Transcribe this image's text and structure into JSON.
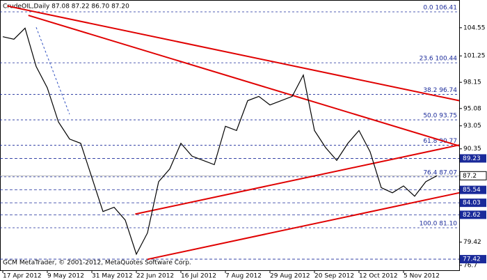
{
  "chart_data": {
    "type": "line",
    "title": "CrudeOIL,Daily  87.08 87.22 86.70 87.20",
    "footer": "GCM MetaTrader, © 2001-2012, MetaQuotes Software Corp.",
    "categories": [
      "17 Apr 2012",
      null,
      null,
      null,
      "9 May 2012",
      null,
      null,
      null,
      "31 May 2012",
      null,
      null,
      null,
      "22 Jun 2012",
      null,
      null,
      null,
      "16 Jul 2012",
      null,
      null,
      null,
      "7 Aug 2012",
      null,
      null,
      null,
      "29 Aug 2012",
      null,
      null,
      null,
      "20 Sep 2012",
      null,
      null,
      null,
      "12 Oct 2012",
      null,
      null,
      null,
      "5 Nov 2012",
      null,
      null,
      null
    ],
    "series": [
      {
        "name": "CrudeOIL",
        "color": "#000000",
        "values": [
          103.5,
          103.2,
          104.5,
          100.0,
          97.5,
          93.5,
          91.5,
          91.0,
          87.0,
          83.0,
          83.5,
          82.0,
          78.0,
          80.5,
          86.5,
          88.0,
          91.0,
          89.5,
          89.0,
          88.5,
          93.0,
          92.5,
          96.0,
          96.5,
          95.5,
          96.0,
          96.5,
          99.0,
          92.5,
          90.5,
          89.0,
          91.0,
          92.5,
          90.0,
          85.8,
          85.2,
          86.0,
          84.8,
          86.5,
          87.2
        ]
      }
    ],
    "ylim": [
      76.12,
      107.8
    ],
    "yticks": [
      104.55,
      101.25,
      98.15,
      95.08,
      93.05,
      90.35,
      79.42,
      76.7
    ],
    "current_price": 87.2,
    "fib_levels": [
      {
        "value": 106.41,
        "label": "0.0 106.41"
      },
      {
        "value": 100.44,
        "label": "23.6 100.44"
      },
      {
        "value": 96.74,
        "label": "38.2 96.74"
      },
      {
        "value": 93.75,
        "label": "50.0 93.75"
      },
      {
        "value": 90.77,
        "label": "61.8 90.77"
      },
      {
        "value": 87.07,
        "label": "76.4 87.07"
      },
      {
        "value": 81.1,
        "label": "100.0 81.10"
      }
    ],
    "levels": [
      89.23,
      85.54,
      84.03,
      82.62,
      77.42
    ],
    "trendlines": [
      {
        "color": "#e00000",
        "x": [
          0.4,
          41
        ],
        "y": [
          107.1,
          96.0
        ]
      },
      {
        "color": "#e00000",
        "x": [
          2.3,
          41
        ],
        "y": [
          106.0,
          90.7
        ]
      },
      {
        "color": "#e00000",
        "x": [
          11.9,
          41
        ],
        "y": [
          82.7,
          90.8
        ]
      },
      {
        "color": "#e00000",
        "x": [
          13,
          41
        ],
        "y": [
          77.4,
          85.2
        ]
      },
      {
        "color": "#3050c0",
        "x": [
          3,
          6
        ],
        "y": [
          104.6,
          94.4
        ]
      }
    ]
  }
}
